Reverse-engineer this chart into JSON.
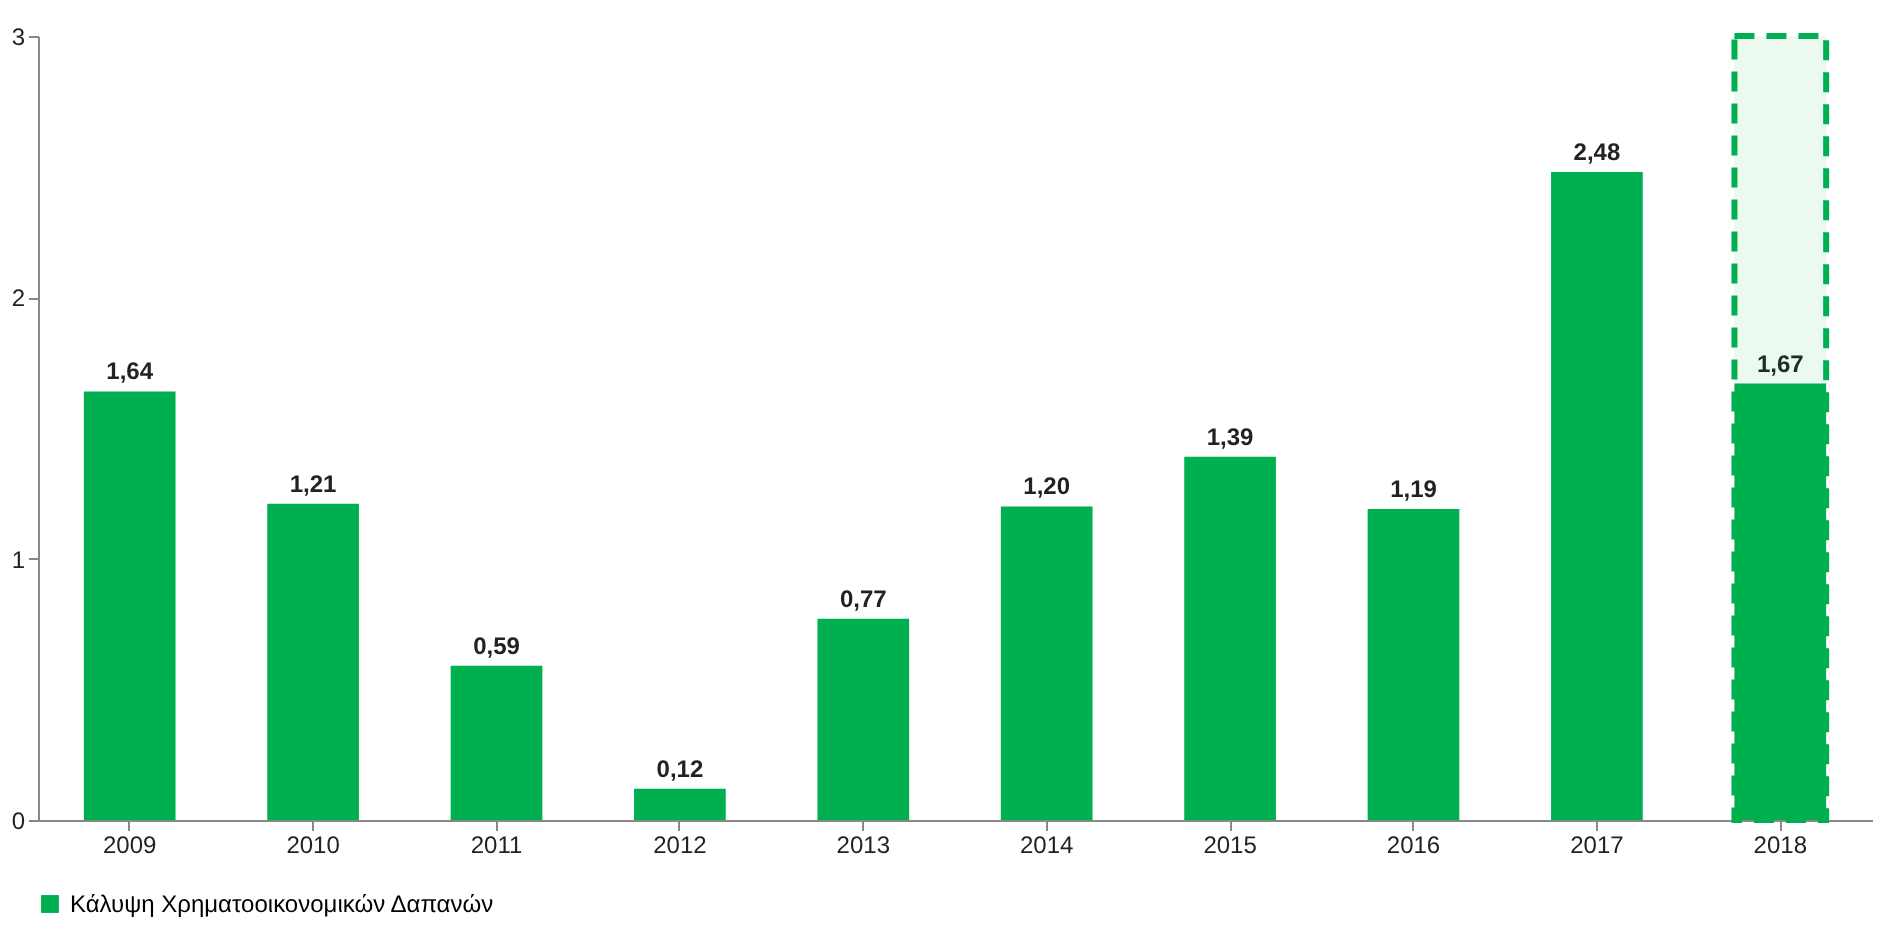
{
  "chart_data": {
    "type": "bar",
    "categories": [
      "2009",
      "2010",
      "2011",
      "2012",
      "2013",
      "2014",
      "2015",
      "2016",
      "2017",
      "2018"
    ],
    "series": [
      {
        "name": "Κάλυψη Χρηματοοικονομικών Δαπανών",
        "color": "#00b050",
        "values": [
          1.64,
          1.21,
          0.59,
          0.12,
          0.77,
          1.2,
          1.39,
          1.19,
          2.48,
          1.67
        ],
        "value_labels": [
          "1,64",
          "1,21",
          "0,59",
          "0,12",
          "0,77",
          "1,20",
          "1,39",
          "1,19",
          "2,48",
          "1,67"
        ]
      }
    ],
    "bands": [
      {
        "axis": "x",
        "from": "2018",
        "to": "2018",
        "color": "#00b050"
      }
    ],
    "ylim": [
      0,
      3
    ],
    "yticks": [
      0,
      1,
      2,
      3
    ],
    "grid": false,
    "legend": "bottom"
  }
}
